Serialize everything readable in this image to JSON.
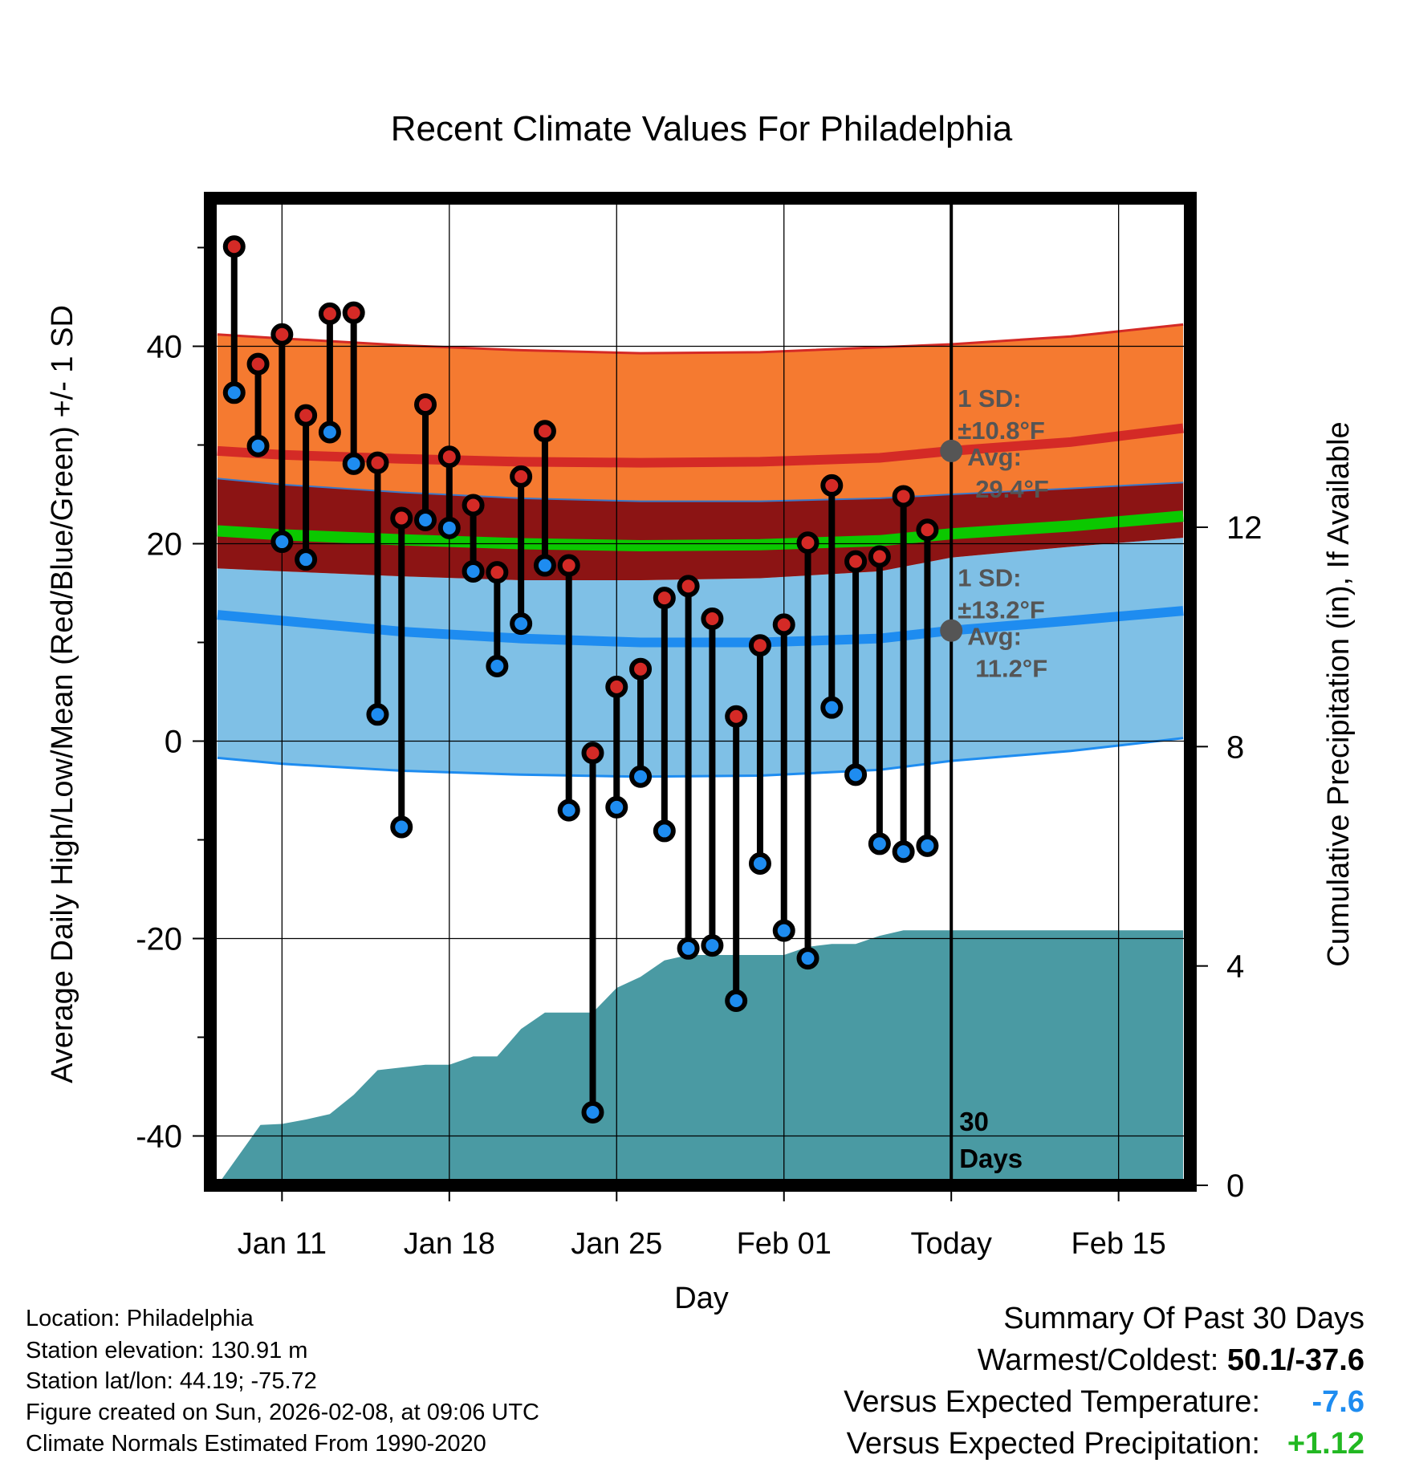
{
  "chart_data": {
    "type": "lollipop-range",
    "title": "Recent Climate Values For Philadelphia",
    "xlabel": "Day",
    "ylabel_left": "Average Daily High/Low/Mean (Red/Blue/Green) +/- 1 SD",
    "ylabel_right": "Cumulative Precipitation (in), If Available",
    "xlim": [
      -3,
      38
    ],
    "ylim_left": [
      -45,
      55
    ],
    "ylim_right": [
      0,
      18
    ],
    "x_ticks": [
      {
        "x": 0,
        "label": "Jan 11"
      },
      {
        "x": 7,
        "label": "Jan 18"
      },
      {
        "x": 14,
        "label": "Jan 25"
      },
      {
        "x": 21,
        "label": "Feb 01"
      },
      {
        "x": 28,
        "label": "Today"
      },
      {
        "x": 35,
        "label": "Feb 15"
      }
    ],
    "y_ticks_left": [
      "40",
      "20",
      "0",
      "-20",
      "-40"
    ],
    "y_ticks_right": [
      "12",
      "8",
      "4",
      "0"
    ],
    "y_tick_values_left": [
      40,
      20,
      0,
      -20,
      -40
    ],
    "y_tick_values_right": [
      12,
      8,
      4,
      0
    ],
    "daily": {
      "x": [
        -2,
        -1,
        0,
        1,
        2,
        3,
        4,
        5,
        6,
        7,
        8,
        9,
        10,
        11,
        12,
        13,
        14,
        15,
        16,
        17,
        18,
        19,
        20,
        21,
        22,
        23,
        24,
        25,
        26,
        27
      ],
      "high": [
        50.1,
        38.2,
        41.2,
        33.0,
        43.3,
        43.4,
        28.2,
        22.6,
        34.1,
        28.8,
        23.9,
        17.1,
        26.8,
        31.4,
        17.8,
        -1.2,
        5.5,
        7.3,
        14.5,
        15.7,
        12.4,
        2.5,
        9.7,
        11.8,
        20.1,
        25.9,
        18.2,
        18.7,
        24.8,
        21.4
      ],
      "low": [
        35.3,
        29.9,
        20.2,
        18.4,
        31.3,
        28.1,
        2.7,
        -8.7,
        22.4,
        21.6,
        17.2,
        7.6,
        11.9,
        17.8,
        -7.0,
        -37.6,
        -6.7,
        -3.6,
        -9.1,
        -21.0,
        -20.7,
        -26.3,
        -12.4,
        -19.2,
        -22.0,
        3.4,
        -3.4,
        -10.4,
        -11.2,
        -10.6
      ]
    },
    "normals_x": [
      -2.7,
      0,
      5,
      10,
      15,
      20,
      25,
      28,
      33,
      37.7
    ],
    "normals": {
      "high_upper": [
        41.2,
        40.8,
        40.1,
        39.6,
        39.3,
        39.4,
        39.9,
        40.2,
        41.0,
        42.2
      ],
      "high_mean": [
        29.4,
        29.0,
        28.6,
        28.3,
        28.2,
        28.3,
        28.7,
        29.4,
        30.3,
        31.7
      ],
      "high_lower": [
        17.5,
        17.2,
        16.7,
        16.3,
        16.3,
        16.5,
        17.2,
        18.6,
        19.7,
        21.1
      ],
      "mean_upper": [
        26.6,
        26.0,
        25.2,
        24.6,
        24.3,
        24.3,
        24.6,
        25.0,
        25.6,
        26.2
      ],
      "mean": [
        21.3,
        20.9,
        20.4,
        20.0,
        19.8,
        19.9,
        20.3,
        21.0,
        21.8,
        22.8
      ],
      "mean_lower": [
        19.9,
        19.4,
        18.9,
        18.5,
        18.3,
        18.4,
        18.8,
        19.5,
        20.3,
        21.1
      ],
      "low_upper": [
        17.5,
        17.2,
        16.7,
        16.3,
        16.3,
        16.5,
        17.2,
        18.6,
        19.7,
        20.6
      ],
      "low_mean": [
        12.8,
        12.2,
        11.1,
        10.4,
        10.0,
        10.0,
        10.4,
        11.2,
        12.2,
        13.2
      ],
      "low_lower": [
        -1.7,
        -2.3,
        -3.0,
        -3.4,
        -3.6,
        -3.5,
        -2.9,
        -2.0,
        -1.0,
        0.3
      ]
    },
    "precip": {
      "x": [
        -2.7,
        -1.8,
        -0.9,
        0,
        1,
        2,
        3,
        4,
        5,
        6,
        7,
        8,
        9,
        10,
        11,
        12,
        13,
        14,
        15,
        16,
        17,
        18,
        19,
        20,
        21,
        22,
        23,
        24,
        25,
        26,
        27,
        28,
        37.7
      ],
      "cum": [
        0,
        0.55,
        1.1,
        1.12,
        1.2,
        1.3,
        1.65,
        2.1,
        2.15,
        2.2,
        2.2,
        2.35,
        2.35,
        2.85,
        3.15,
        3.15,
        3.15,
        3.6,
        3.8,
        4.1,
        4.2,
        4.2,
        4.2,
        4.2,
        4.2,
        4.35,
        4.4,
        4.4,
        4.55,
        4.65,
        4.65,
        4.65,
        4.65
      ]
    },
    "annotations": {
      "high_sd": "1 SD:",
      "high_sd_val": "±10.8°F",
      "high_avg": "Avg:",
      "high_avg_val": "29.4°F",
      "low_sd": "1 SD:",
      "low_sd_val": "±13.2°F",
      "low_avg": "Avg:",
      "low_avg_val": "11.2°F",
      "days_num": "30",
      "days_label": "Days"
    },
    "high_avg_today": 29.4,
    "low_avg_today": 11.2,
    "colors": {
      "high_band": "#f57a30",
      "high_line": "#d42a26",
      "mean_band": "#8c1414",
      "mean_line": "#0bc800",
      "low_band": "#7fc0e6",
      "low_line": "#1e8cf0",
      "precip": "#4a9aa3",
      "high_dot": "#d42a26",
      "low_dot": "#1e8cf0",
      "annot": "#555555"
    }
  },
  "info": {
    "location": "Location: Philadelphia",
    "elevation": "Station elevation: 130.91 m",
    "latlon": "Station lat/lon: 44.19; -75.72",
    "created": "Figure created on Sun, 2026-02-08, at 09:06 UTC",
    "normals": "Climate Normals Estimated From 1990-2020"
  },
  "summary": {
    "heading": "Summary Of Past 30 Days",
    "warm_label": "Warmest/Coldest: ",
    "warm_value": "50.1/-37.6",
    "temp_label": "Versus Expected Temperature:",
    "temp_value": "-7.6",
    "temp_color": "#1e8cf0",
    "precip_label": "Versus Expected Precipitation:",
    "precip_value": "+1.12",
    "precip_color": "#22b822"
  }
}
